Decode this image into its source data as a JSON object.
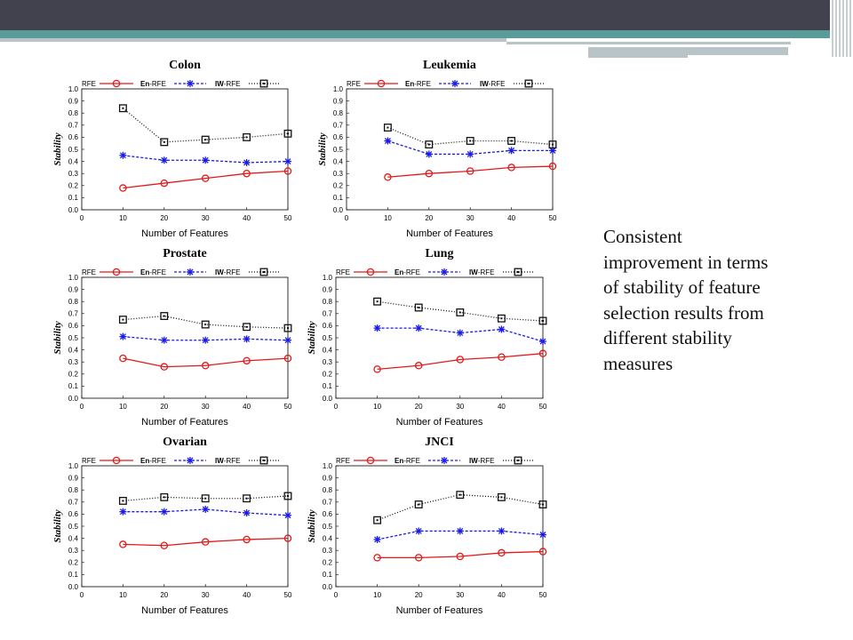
{
  "side_text": "Consistent improvement in terms of stability of feature selection results from different stability measures",
  "colors": {
    "header_dark": "#42424f",
    "header_teal": "#5a9c9a",
    "header_grey": "#b9c4c8",
    "RFE": "#e11a1a",
    "En-RFE": "#1a1ae6",
    "IW-RFE": "#111111"
  },
  "chart_data": [
    {
      "type": "line",
      "title": "Colon",
      "xlabel": "Number of Features",
      "ylabel": "Stability",
      "xlim": [
        0,
        50
      ],
      "ylim": [
        0,
        1.0
      ],
      "x_ticks": [
        "0",
        "10",
        "20",
        "30",
        "40",
        "50"
      ],
      "y_ticks": [
        "0.0",
        "0.1",
        "0.2",
        "0.3",
        "0.4",
        "0.5",
        "0.6",
        "0.7",
        "0.8",
        "0.9",
        "1.0"
      ],
      "x": [
        10,
        20,
        30,
        40,
        50
      ],
      "legend": [
        {
          "prefix": "",
          "suffix": "RFE"
        },
        {
          "prefix": "En",
          "suffix": "-RFE"
        },
        {
          "prefix": "IW",
          "suffix": "-RFE"
        }
      ],
      "series": [
        {
          "name": "RFE",
          "values": [
            0.18,
            0.22,
            0.26,
            0.3,
            0.32
          ]
        },
        {
          "name": "En-RFE",
          "values": [
            0.45,
            0.41,
            0.41,
            0.39,
            0.4
          ]
        },
        {
          "name": "IW-RFE",
          "values": [
            0.84,
            0.56,
            0.58,
            0.6,
            0.63
          ]
        }
      ]
    },
    {
      "type": "line",
      "title": "Leukemia",
      "xlabel": "Number of Features",
      "ylabel": "Stability",
      "xlim": [
        0,
        50
      ],
      "ylim": [
        0,
        1.0
      ],
      "x_ticks": [
        "0",
        "10",
        "20",
        "30",
        "40",
        "50"
      ],
      "y_ticks": [
        "0.0",
        "0.1",
        "0.2",
        "0.3",
        "0.4",
        "0.5",
        "0.6",
        "0.7",
        "0.8",
        "0.9",
        "1.0"
      ],
      "x": [
        10,
        20,
        30,
        40,
        50
      ],
      "legend": [
        {
          "prefix": "",
          "suffix": "RFE"
        },
        {
          "prefix": "En",
          "suffix": "-RFE"
        },
        {
          "prefix": "IW",
          "suffix": "-RFE"
        }
      ],
      "series": [
        {
          "name": "RFE",
          "values": [
            0.27,
            0.3,
            0.32,
            0.35,
            0.36
          ]
        },
        {
          "name": "En-RFE",
          "values": [
            0.57,
            0.46,
            0.46,
            0.49,
            0.49
          ]
        },
        {
          "name": "IW-RFE",
          "values": [
            0.68,
            0.54,
            0.57,
            0.57,
            0.54
          ]
        }
      ]
    },
    {
      "type": "line",
      "title": "Prostate",
      "xlabel": "Number of Features",
      "ylabel": "Stability",
      "xlim": [
        0,
        50
      ],
      "ylim": [
        0,
        1.0
      ],
      "x_ticks": [
        "0",
        "10",
        "20",
        "30",
        "40",
        "50"
      ],
      "y_ticks": [
        "0.0",
        "0.1",
        "0.2",
        "0.3",
        "0.4",
        "0.5",
        "0.6",
        "0.7",
        "0.8",
        "0.9",
        "1.0"
      ],
      "x": [
        10,
        20,
        30,
        40,
        50
      ],
      "legend": [
        {
          "prefix": "",
          "suffix": "RFE"
        },
        {
          "prefix": "En",
          "suffix": "-RFE"
        },
        {
          "prefix": "IW",
          "suffix": "-RFE"
        }
      ],
      "series": [
        {
          "name": "RFE",
          "values": [
            0.33,
            0.26,
            0.27,
            0.31,
            0.33
          ]
        },
        {
          "name": "En-RFE",
          "values": [
            0.51,
            0.48,
            0.48,
            0.49,
            0.48
          ]
        },
        {
          "name": "IW-RFE",
          "values": [
            0.65,
            0.68,
            0.61,
            0.59,
            0.58
          ]
        }
      ]
    },
    {
      "type": "line",
      "title": "Lung",
      "xlabel": "Number of Features",
      "ylabel": "Stability",
      "xlim": [
        0,
        50
      ],
      "ylim": [
        0,
        1.0
      ],
      "x_ticks": [
        "0",
        "10",
        "20",
        "30",
        "40",
        "50"
      ],
      "y_ticks": [
        "0.0",
        "0.1",
        "0.2",
        "0.3",
        "0.4",
        "0.5",
        "0.6",
        "0.7",
        "0.8",
        "0.9",
        "1.0"
      ],
      "x": [
        10,
        20,
        30,
        40,
        50
      ],
      "legend": [
        {
          "prefix": "",
          "suffix": "RFE"
        },
        {
          "prefix": "En",
          "suffix": "-RFE"
        },
        {
          "prefix": "IW",
          "suffix": "-RFE"
        }
      ],
      "series": [
        {
          "name": "RFE",
          "values": [
            0.24,
            0.27,
            0.32,
            0.34,
            0.37
          ]
        },
        {
          "name": "En-RFE",
          "values": [
            0.58,
            0.58,
            0.54,
            0.57,
            0.47
          ]
        },
        {
          "name": "IW-RFE",
          "values": [
            0.8,
            0.75,
            0.71,
            0.66,
            0.64
          ]
        }
      ]
    },
    {
      "type": "line",
      "title": "Ovarian",
      "xlabel": "Number of Features",
      "ylabel": "Stability",
      "xlim": [
        0,
        50
      ],
      "ylim": [
        0,
        1.0
      ],
      "x_ticks": [
        "0",
        "10",
        "20",
        "30",
        "40",
        "50"
      ],
      "y_ticks": [
        "0.0",
        "0.1",
        "0.2",
        "0.3",
        "0.4",
        "0.5",
        "0.6",
        "0.7",
        "0.8",
        "0.9",
        "1.0"
      ],
      "x": [
        10,
        20,
        30,
        40,
        50
      ],
      "legend": [
        {
          "prefix": "",
          "suffix": "RFE"
        },
        {
          "prefix": "En",
          "suffix": "-RFE"
        },
        {
          "prefix": "IW",
          "suffix": "-RFE"
        }
      ],
      "series": [
        {
          "name": "RFE",
          "values": [
            0.35,
            0.34,
            0.37,
            0.39,
            0.4
          ]
        },
        {
          "name": "En-RFE",
          "values": [
            0.62,
            0.62,
            0.64,
            0.61,
            0.59
          ]
        },
        {
          "name": "IW-RFE",
          "values": [
            0.71,
            0.74,
            0.73,
            0.73,
            0.75
          ]
        }
      ]
    },
    {
      "type": "line",
      "title": "JNCI",
      "xlabel": "Number of Features",
      "ylabel": "Stability",
      "xlim": [
        0,
        50
      ],
      "ylim": [
        0,
        1.0
      ],
      "x_ticks": [
        "0",
        "10",
        "20",
        "30",
        "40",
        "50"
      ],
      "y_ticks": [
        "0.0",
        "0.1",
        "0.2",
        "0.3",
        "0.4",
        "0.5",
        "0.6",
        "0.7",
        "0.8",
        "0.9",
        "1.0"
      ],
      "x": [
        10,
        20,
        30,
        40,
        50
      ],
      "legend": [
        {
          "prefix": "",
          "suffix": "RFE"
        },
        {
          "prefix": "En",
          "suffix": "-RFE"
        },
        {
          "prefix": "IW",
          "suffix": "-RFE"
        }
      ],
      "series": [
        {
          "name": "RFE",
          "values": [
            0.24,
            0.24,
            0.25,
            0.28,
            0.29
          ]
        },
        {
          "name": "En-RFE",
          "values": [
            0.39,
            0.46,
            0.46,
            0.46,
            0.43
          ]
        },
        {
          "name": "IW-RFE",
          "values": [
            0.55,
            0.68,
            0.76,
            0.74,
            0.68
          ]
        }
      ]
    }
  ]
}
